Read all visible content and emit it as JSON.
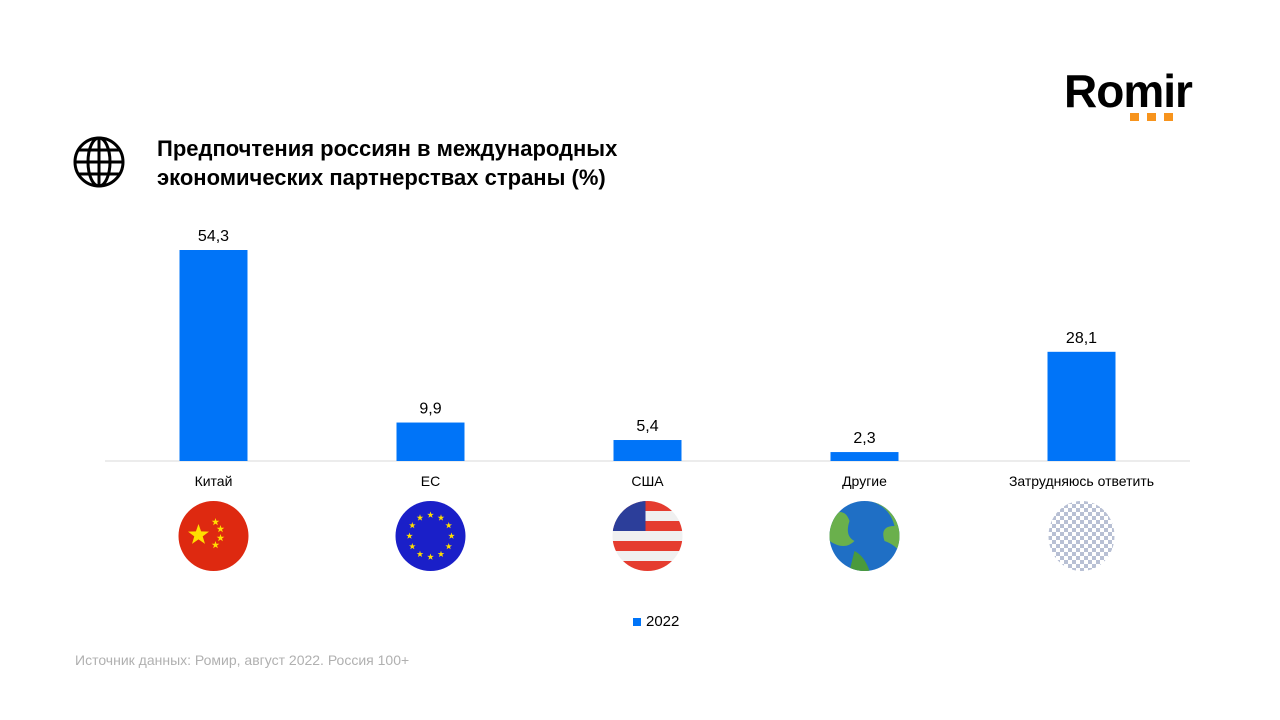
{
  "title": "Предпочтения россиян в международных экономических партнерствах страны (%)",
  "logo": "Romir",
  "source": "Источник данных: Ромир, август 2022. Россия 100+",
  "icons": [
    "china-flag-icon",
    "eu-flag-icon",
    "usa-flag-icon",
    "earth-icon",
    "transparent-placeholder-icon"
  ],
  "colors": {
    "bar": "#0074f8",
    "logo_dots": "#f7941d"
  },
  "chart_data": {
    "type": "bar",
    "title": "Предпочтения россиян в международных экономических партнерствах страны (%)",
    "categories": [
      "Китай",
      "ЕС",
      "США",
      "Другие",
      "Затрудняюсь ответить"
    ],
    "series": [
      {
        "name": "2022",
        "values": [
          54.3,
          9.9,
          5.4,
          2.3,
          28.1
        ]
      }
    ],
    "value_labels": [
      "54,3",
      "9,9",
      "5,4",
      "2,3",
      "28,1"
    ],
    "ylim": [
      0,
      60
    ],
    "grid": false,
    "legend": "bottom"
  }
}
